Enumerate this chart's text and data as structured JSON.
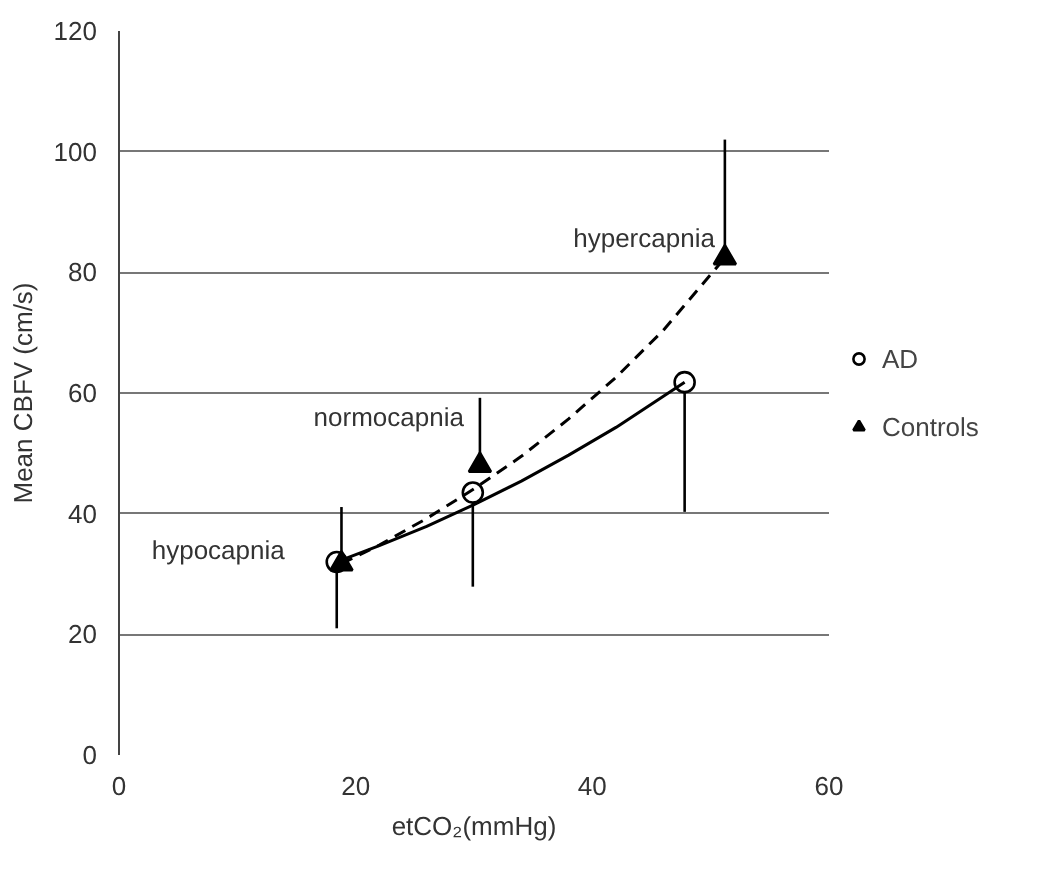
{
  "chart_data": {
    "type": "scatter",
    "xlabel": "etCO₂(mmHg)",
    "ylabel": "Mean CBFV (cm/s)",
    "xlim": [
      0,
      60
    ],
    "xticks": [
      0,
      20,
      40,
      60
    ],
    "ylim": [
      0,
      120
    ],
    "yticks": [
      0,
      20,
      40,
      60,
      80,
      100,
      120
    ],
    "grid": "y",
    "legend": "right",
    "series": [
      {
        "name": "AD",
        "marker": "circle",
        "color": "#000000",
        "x": [
          18.4,
          29.9,
          47.8
        ],
        "values": [
          32.0,
          43.5,
          61.8
        ],
        "errors": [
          [
            21.0,
            32.0
          ],
          [
            27.9,
            43.5
          ],
          [
            40.3,
            61.8
          ]
        ]
      },
      {
        "name": "Controls",
        "marker": "triangle",
        "color": "#000000",
        "x": [
          18.8,
          30.5,
          51.2
        ],
        "values": [
          31.7,
          48.0,
          82.4
        ],
        "errors": [
          [
            31.7,
            41.1
          ],
          [
            48.0,
            59.2
          ],
          [
            82.4,
            102
          ]
        ]
      },
      {
        "type": "line",
        "line_style": "solid",
        "color": "#000000",
        "x": [
          18.4,
          22,
          26,
          30,
          34,
          38,
          42,
          47.8
        ],
        "values": [
          32.0,
          34.7,
          37.9,
          41.5,
          45.4,
          49.7,
          54.3,
          61.8
        ]
      },
      {
        "type": "line",
        "line_style": "dashed",
        "color": "#000000",
        "x": [
          18.8,
          22,
          26,
          30,
          34,
          38,
          42,
          46,
          51.2
        ],
        "values": [
          31.7,
          34.8,
          39.2,
          44.1,
          49.5,
          55.7,
          62.6,
          70.4,
          82.4
        ]
      }
    ],
    "annotations": [
      {
        "text": "hypocapnia",
        "x": 18.4,
        "y": 32.0
      },
      {
        "text": "normocapnia",
        "x": 30.5,
        "y": 48.0
      },
      {
        "text": "hypercapnia",
        "x": 51.2,
        "y": 82.4
      }
    ]
  }
}
